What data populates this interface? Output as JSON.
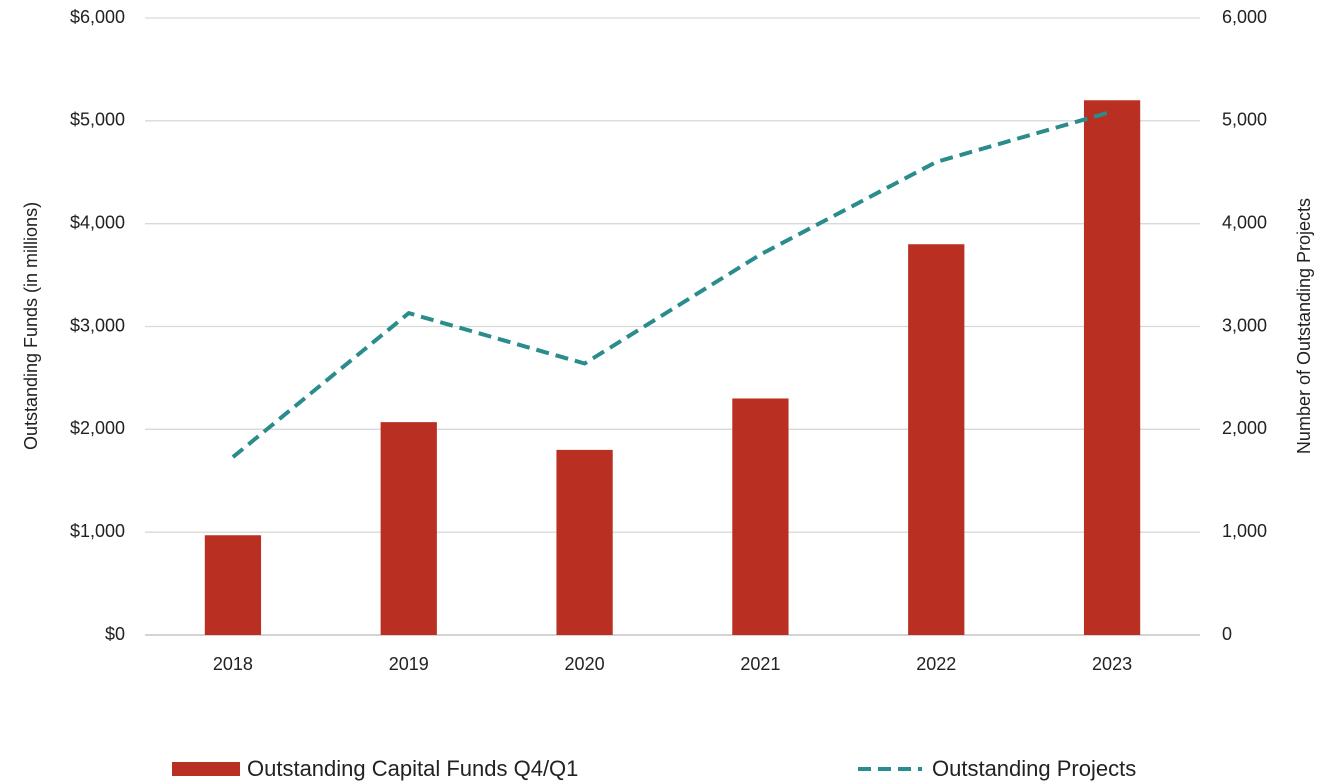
{
  "chart_data": {
    "type": "combo",
    "categories": [
      "2018",
      "2019",
      "2020",
      "2021",
      "2022",
      "2023"
    ],
    "ylabel": "Outstanding Funds (in millions)",
    "y2label": "Number of Outstanding Projects",
    "ylim": [
      0,
      6000
    ],
    "yticks": [
      {
        "value": 0,
        "label": "$0"
      },
      {
        "value": 1000,
        "label": "$1,000"
      },
      {
        "value": 2000,
        "label": "$2,000"
      },
      {
        "value": 3000,
        "label": "$3,000"
      },
      {
        "value": 4000,
        "label": "$4,000"
      },
      {
        "value": 5000,
        "label": "$5,000"
      },
      {
        "value": 6000,
        "label": "$6,000"
      }
    ],
    "y2lim": [
      0,
      6000
    ],
    "y2ticks": [
      0,
      {
        "value": 1000,
        "label": "1,000"
      },
      {
        "value": 2000,
        "label": "2,000"
      },
      {
        "value": 3000,
        "label": "3,000"
      },
      {
        "value": 4000,
        "label": "4,000"
      },
      {
        "value": 5000,
        "label": "5,000"
      },
      {
        "value": 6000,
        "label": "6,000"
      }
    ],
    "grid": true,
    "legend": "bottom",
    "series": [
      {
        "name": "Outstanding Capital Funds Q4/Q1",
        "type": "bar",
        "color": "#b93022",
        "values": [
          970,
          2070,
          1800,
          2300,
          3800,
          5200
        ]
      },
      {
        "name": "Outstanding Projects",
        "type": "line",
        "axis": "y2",
        "dashed": true,
        "color": "#2a8c8c",
        "values": [
          1730,
          3130,
          2640,
          3700,
          4600,
          5090
        ]
      }
    ]
  }
}
